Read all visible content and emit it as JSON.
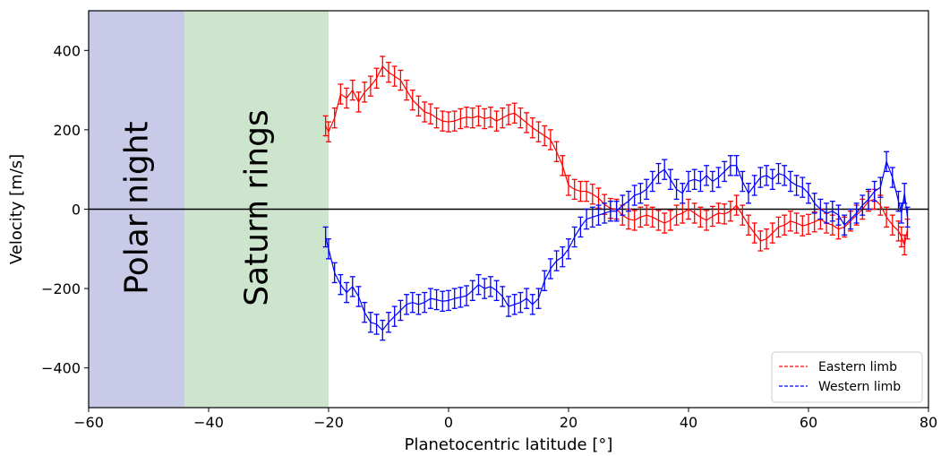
{
  "chart_data": {
    "type": "line",
    "xlabel": "Planetocentric latitude [°]",
    "ylabel": "Velocity [m/s]",
    "xlim": [
      -60,
      80
    ],
    "ylim": [
      -500,
      500
    ],
    "xticks": [
      -60,
      -40,
      -20,
      0,
      20,
      40,
      60,
      80
    ],
    "xtick_labels": [
      "−60",
      "−40",
      "−20",
      "0",
      "20",
      "40",
      "60",
      "80"
    ],
    "yticks": [
      -400,
      -200,
      0,
      200,
      400
    ],
    "ytick_labels": [
      "−400",
      "−200",
      "0",
      "200",
      "400"
    ],
    "grid": false,
    "zero_line": true,
    "legend_position": "lower-right",
    "regions": [
      {
        "label": "Polar night",
        "x_start": -60,
        "x_end": -44,
        "color": "#c9c9e8"
      },
      {
        "label": "Saturn rings",
        "x_start": -44,
        "x_end": -20,
        "color": "#cde5cd"
      }
    ],
    "error_bar": 25,
    "series": [
      {
        "name": "Eastern limb",
        "color": "#ff0000",
        "points": [
          [
            -20.5,
            210
          ],
          [
            -20,
            195
          ],
          [
            -19,
            230
          ],
          [
            -18,
            290
          ],
          [
            -17,
            280
          ],
          [
            -16,
            300
          ],
          [
            -15,
            270
          ],
          [
            -14,
            295
          ],
          [
            -13,
            310
          ],
          [
            -12,
            330
          ],
          [
            -11,
            360
          ],
          [
            -10,
            345
          ],
          [
            -9,
            335
          ],
          [
            -8,
            325
          ],
          [
            -7,
            300
          ],
          [
            -6,
            275
          ],
          [
            -5,
            260
          ],
          [
            -4,
            245
          ],
          [
            -3,
            240
          ],
          [
            -2,
            230
          ],
          [
            -1,
            222
          ],
          [
            0,
            220
          ],
          [
            1,
            222
          ],
          [
            2,
            228
          ],
          [
            3,
            232
          ],
          [
            4,
            230
          ],
          [
            5,
            235
          ],
          [
            6,
            228
          ],
          [
            7,
            232
          ],
          [
            8,
            222
          ],
          [
            9,
            230
          ],
          [
            10,
            238
          ],
          [
            11,
            242
          ],
          [
            12,
            230
          ],
          [
            13,
            218
          ],
          [
            14,
            205
          ],
          [
            15,
            195
          ],
          [
            16,
            185
          ],
          [
            17,
            175
          ],
          [
            18,
            145
          ],
          [
            19,
            110
          ],
          [
            20,
            60
          ],
          [
            21,
            50
          ],
          [
            22,
            45
          ],
          [
            23,
            45
          ],
          [
            24,
            38
          ],
          [
            25,
            28
          ],
          [
            26,
            12
          ],
          [
            27,
            2
          ],
          [
            28,
            0
          ],
          [
            29,
            -15
          ],
          [
            30,
            -25
          ],
          [
            31,
            -28
          ],
          [
            32,
            -20
          ],
          [
            33,
            -15
          ],
          [
            34,
            -20
          ],
          [
            35,
            -28
          ],
          [
            36,
            -35
          ],
          [
            37,
            -28
          ],
          [
            38,
            -15
          ],
          [
            39,
            -10
          ],
          [
            40,
            0
          ],
          [
            41,
            -10
          ],
          [
            42,
            -20
          ],
          [
            43,
            -28
          ],
          [
            44,
            -18
          ],
          [
            45,
            -10
          ],
          [
            46,
            -12
          ],
          [
            47,
            -5
          ],
          [
            48,
            10
          ],
          [
            49,
            -15
          ],
          [
            50,
            -40
          ],
          [
            51,
            -60
          ],
          [
            52,
            -80
          ],
          [
            53,
            -75
          ],
          [
            54,
            -60
          ],
          [
            55,
            -45
          ],
          [
            56,
            -40
          ],
          [
            57,
            -30
          ],
          [
            58,
            -35
          ],
          [
            59,
            -42
          ],
          [
            60,
            -38
          ],
          [
            61,
            -32
          ],
          [
            62,
            -25
          ],
          [
            63,
            -35
          ],
          [
            64,
            -40
          ],
          [
            65,
            -50
          ],
          [
            66,
            -45
          ],
          [
            67,
            -30
          ],
          [
            68,
            -15
          ],
          [
            69,
            0
          ],
          [
            70,
            20
          ],
          [
            71,
            25
          ],
          [
            72,
            10
          ],
          [
            73,
            -20
          ],
          [
            74,
            -40
          ],
          [
            75,
            -55
          ],
          [
            75.5,
            -70
          ],
          [
            76,
            -90
          ],
          [
            76.5,
            -50
          ]
        ]
      },
      {
        "name": "Western limb",
        "color": "#0000ff",
        "points": [
          [
            -20.5,
            -70
          ],
          [
            -20,
            -100
          ],
          [
            -19,
            -160
          ],
          [
            -18,
            -190
          ],
          [
            -17,
            -210
          ],
          [
            -16,
            -195
          ],
          [
            -15,
            -220
          ],
          [
            -14,
            -260
          ],
          [
            -13,
            -285
          ],
          [
            -12,
            -290
          ],
          [
            -11,
            -305
          ],
          [
            -10,
            -285
          ],
          [
            -9,
            -270
          ],
          [
            -8,
            -255
          ],
          [
            -7,
            -240
          ],
          [
            -6,
            -235
          ],
          [
            -5,
            -240
          ],
          [
            -4,
            -235
          ],
          [
            -3,
            -225
          ],
          [
            -2,
            -228
          ],
          [
            -1,
            -232
          ],
          [
            0,
            -230
          ],
          [
            1,
            -225
          ],
          [
            2,
            -222
          ],
          [
            3,
            -218
          ],
          [
            4,
            -205
          ],
          [
            5,
            -190
          ],
          [
            6,
            -200
          ],
          [
            7,
            -195
          ],
          [
            8,
            -205
          ],
          [
            9,
            -220
          ],
          [
            10,
            -245
          ],
          [
            11,
            -240
          ],
          [
            12,
            -235
          ],
          [
            13,
            -225
          ],
          [
            14,
            -240
          ],
          [
            15,
            -225
          ],
          [
            16,
            -180
          ],
          [
            17,
            -150
          ],
          [
            18,
            -130
          ],
          [
            19,
            -120
          ],
          [
            20,
            -100
          ],
          [
            21,
            -70
          ],
          [
            22,
            -45
          ],
          [
            23,
            -25
          ],
          [
            24,
            -20
          ],
          [
            25,
            -15
          ],
          [
            26,
            -10
          ],
          [
            27,
            -5
          ],
          [
            28,
            -5
          ],
          [
            29,
            10
          ],
          [
            30,
            20
          ],
          [
            31,
            35
          ],
          [
            32,
            40
          ],
          [
            33,
            50
          ],
          [
            34,
            70
          ],
          [
            35,
            90
          ],
          [
            36,
            100
          ],
          [
            37,
            75
          ],
          [
            38,
            50
          ],
          [
            39,
            40
          ],
          [
            40,
            70
          ],
          [
            41,
            75
          ],
          [
            42,
            70
          ],
          [
            43,
            85
          ],
          [
            44,
            70
          ],
          [
            45,
            80
          ],
          [
            46,
            95
          ],
          [
            47,
            110
          ],
          [
            48,
            110
          ],
          [
            49,
            70
          ],
          [
            50,
            40
          ],
          [
            51,
            60
          ],
          [
            52,
            80
          ],
          [
            53,
            85
          ],
          [
            54,
            75
          ],
          [
            55,
            90
          ],
          [
            56,
            85
          ],
          [
            57,
            70
          ],
          [
            58,
            60
          ],
          [
            59,
            55
          ],
          [
            60,
            40
          ],
          [
            61,
            15
          ],
          [
            62,
            0
          ],
          [
            63,
            -10
          ],
          [
            64,
            -5
          ],
          [
            65,
            -15
          ],
          [
            66,
            -40
          ],
          [
            67,
            -25
          ],
          [
            68,
            -10
          ],
          [
            69,
            10
          ],
          [
            70,
            25
          ],
          [
            71,
            45
          ],
          [
            72,
            55
          ],
          [
            73,
            120
          ],
          [
            74,
            80
          ],
          [
            75,
            20
          ],
          [
            75.5,
            -10
          ],
          [
            76,
            40
          ],
          [
            76.5,
            -20
          ]
        ]
      }
    ]
  }
}
